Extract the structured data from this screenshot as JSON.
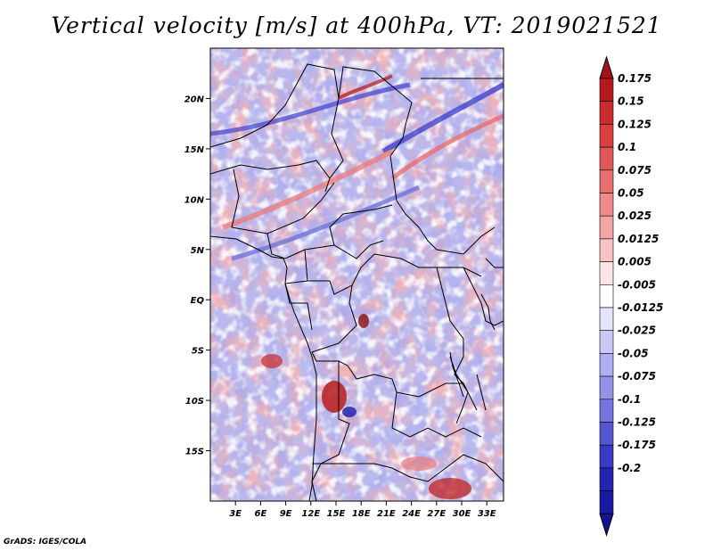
{
  "title": "Vertical velocity [m/s] at 400hPa, VT: 2019021521",
  "footer": "GrADS: IGES/COLA",
  "map": {
    "lat_range": [
      -20,
      25
    ],
    "lon_range": [
      0,
      35
    ],
    "lat_ticks": [
      "20N",
      "15N",
      "10N",
      "5N",
      "EQ",
      "5S",
      "10S",
      "15S"
    ],
    "lat_values": [
      20,
      15,
      10,
      5,
      0,
      -5,
      -10,
      -15
    ],
    "lon_ticks": [
      "3E",
      "6E",
      "9E",
      "12E",
      "15E",
      "18E",
      "21E",
      "24E",
      "27E",
      "30E",
      "33E"
    ],
    "lon_values": [
      3,
      6,
      9,
      12,
      15,
      18,
      21,
      24,
      27,
      30,
      33
    ]
  },
  "colorbar": {
    "labels": [
      "0.175",
      "0.15",
      "0.125",
      "0.1",
      "0.075",
      "0.05",
      "0.025",
      "0.0125",
      "0.005",
      "-0.005",
      "-0.0125",
      "-0.025",
      "-0.05",
      "-0.075",
      "-0.1",
      "-0.125",
      "-0.175",
      "-0.2"
    ],
    "colors": [
      "#b41a1c",
      "#c92c2c",
      "#d94040",
      "#e15757",
      "#e87070",
      "#ee8a8a",
      "#f3a4a4",
      "#f8c3c3",
      "#fde4e4",
      "#ffffff",
      "#e4e4fb",
      "#c9c9f6",
      "#aeaef0",
      "#9393e8",
      "#7575df",
      "#5656d2",
      "#3a3ac4",
      "#2424b2",
      "#1a1aa0"
    ],
    "top_color": "#a1141a",
    "bottom_color": "#121296"
  }
}
